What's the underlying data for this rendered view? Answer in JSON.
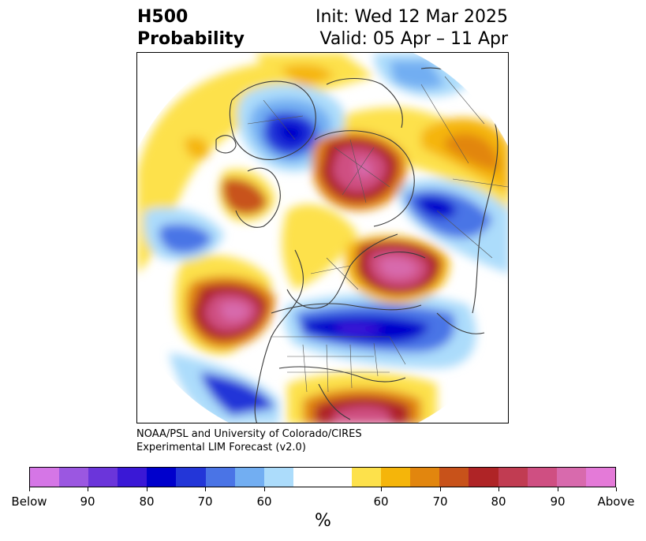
{
  "title": {
    "left_line1": "H500",
    "left_line2": "Probability",
    "right_line1": "Init: Wed 12 Mar 2025",
    "right_line2": "Valid: 05 Apr – 11 Apr"
  },
  "credit": {
    "line1": "NOAA/PSL and University of Colorado/CIRES",
    "line2": "Experimental LIM Forecast (v2.0)"
  },
  "colorbar": {
    "colors": [
      "#d576e6",
      "#9b57e1",
      "#6b35da",
      "#3a18d6",
      "#0000cc",
      "#2336d8",
      "#4a74e6",
      "#72aef2",
      "#acdcfb",
      "#ffffff",
      "#ffffff",
      "#fde14b",
      "#f5b50a",
      "#e2860e",
      "#c8521a",
      "#af2426",
      "#c13c52",
      "#cf4f82",
      "#d86aad",
      "#e47ad8"
    ],
    "labels": [
      {
        "text": "Below",
        "idx": 0
      },
      {
        "text": "90",
        "idx": 2
      },
      {
        "text": "80",
        "idx": 4
      },
      {
        "text": "70",
        "idx": 6
      },
      {
        "text": "60",
        "idx": 8
      },
      {
        "text": "60",
        "idx": 12
      },
      {
        "text": "70",
        "idx": 14
      },
      {
        "text": "80",
        "idx": 16
      },
      {
        "text": "90",
        "idx": 18
      },
      {
        "text": "Above",
        "idx": 20
      }
    ],
    "unit": "%"
  }
}
